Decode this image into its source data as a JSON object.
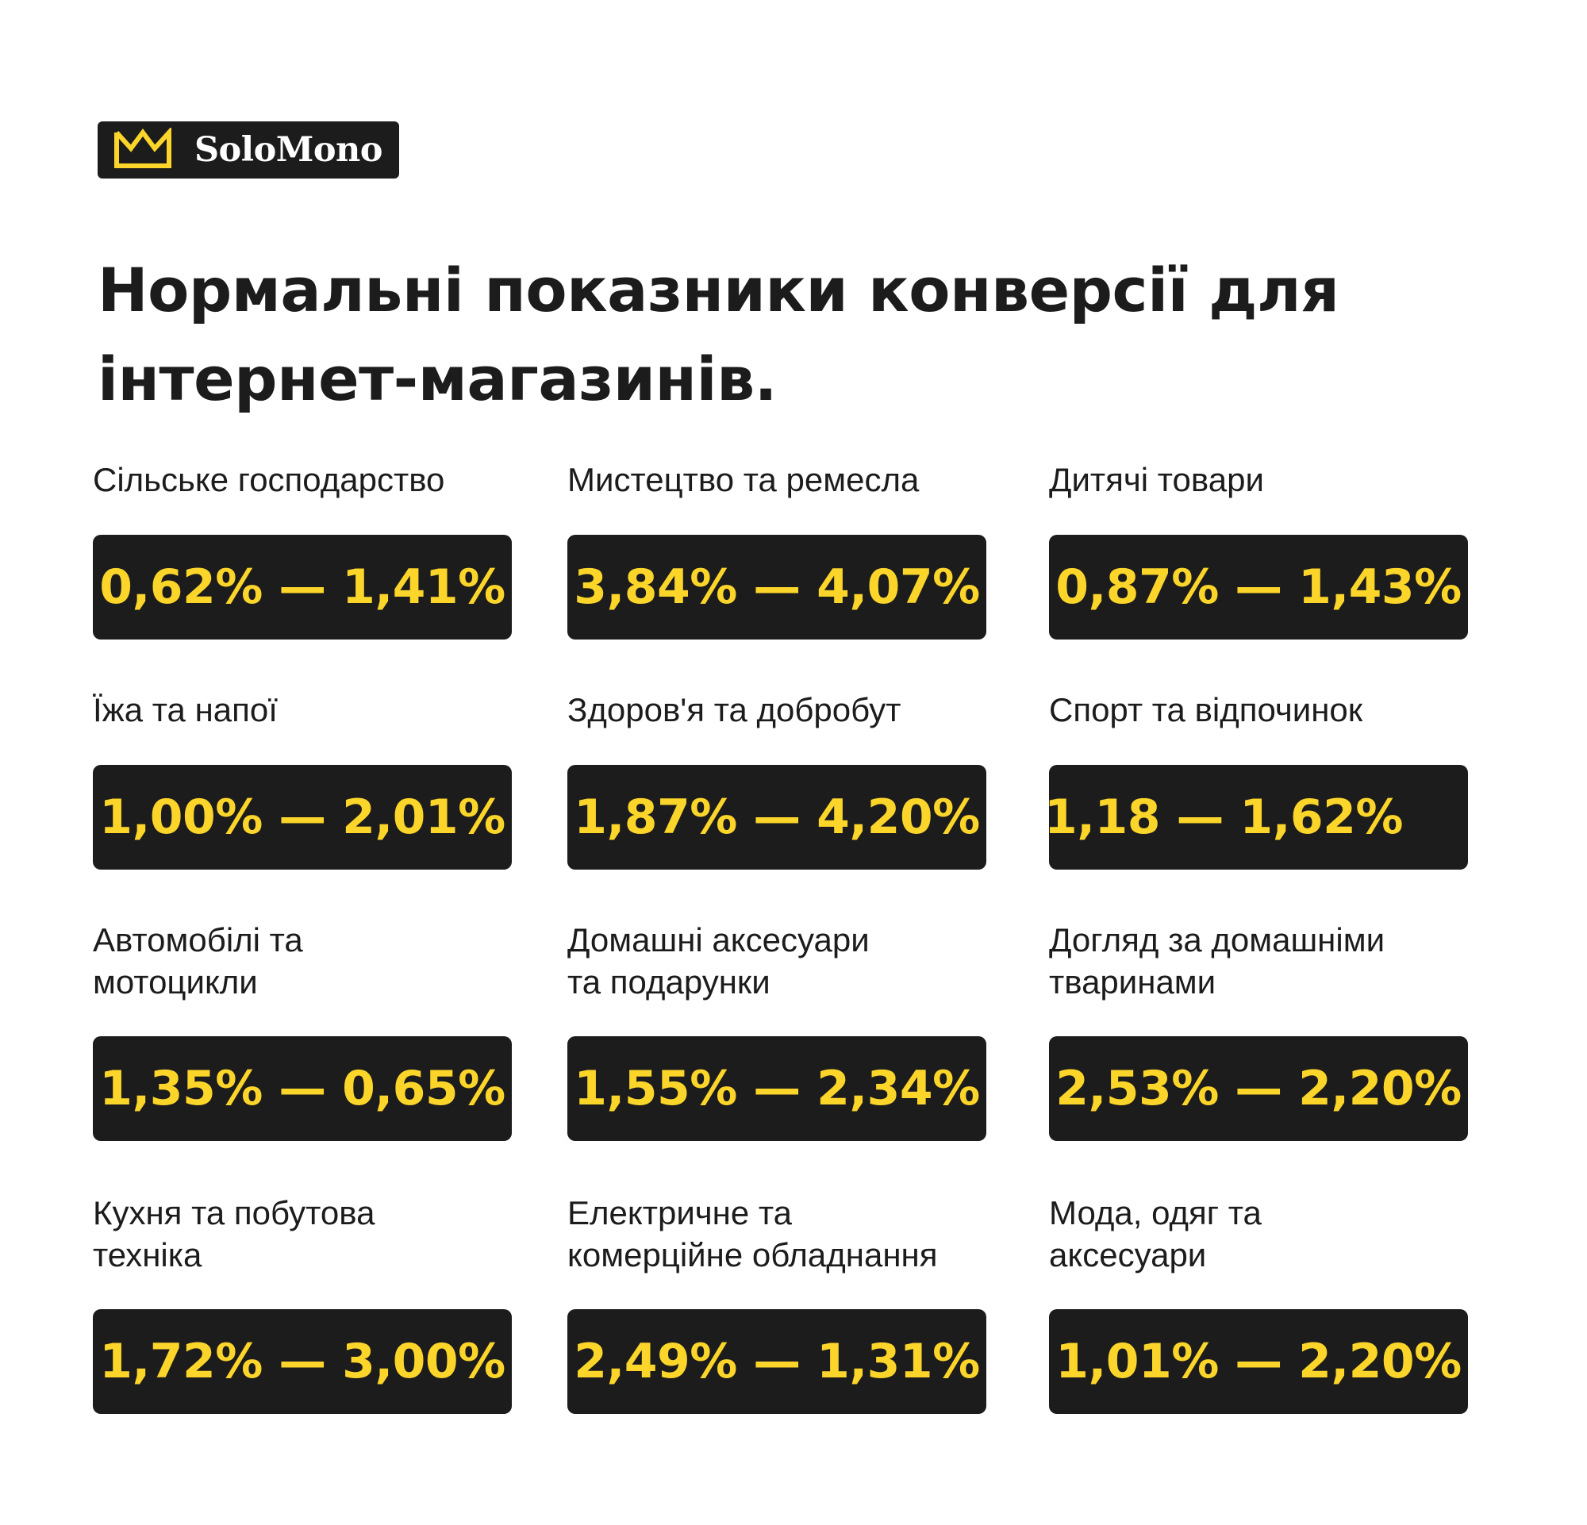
{
  "brand": {
    "name": "SoloMono",
    "logo_icon": "crown-icon",
    "colors": {
      "dark": "#1c1c1c",
      "accent": "#fcd52a",
      "background": "#ffffff"
    }
  },
  "title": {
    "line1": "Нормальні показники конверсії для",
    "line2": "інтернет-магазинів."
  },
  "categories": [
    {
      "label_lines": [
        "Сільське господарство"
      ],
      "range": "0,62% — 1,41%"
    },
    {
      "label_lines": [
        "Мистецтво та ремесла"
      ],
      "range": "3,84% — 4,07%"
    },
    {
      "label_lines": [
        "Дитячі товари"
      ],
      "range": "0,87% — 1,43%"
    },
    {
      "label_lines": [
        "Їжа та напої"
      ],
      "range": "1,00% — 2,01%"
    },
    {
      "label_lines": [
        "Здоров'я та добробут"
      ],
      "range": "1,87% — 4,20%"
    },
    {
      "label_lines": [
        "Спорт та відпочинок"
      ],
      "range": "1,18 — 1,62%"
    },
    {
      "label_lines": [
        "Автомобілі та",
        "мотоцикли"
      ],
      "range": "1,35% — 0,65%"
    },
    {
      "label_lines": [
        "Домашні аксесуари",
        "та подарунки"
      ],
      "range": "1,55% — 2,34%"
    },
    {
      "label_lines": [
        "Догляд за домашніми",
        "тваринами"
      ],
      "range": "2,53% — 2,20%"
    },
    {
      "label_lines": [
        "Кухня та побутова",
        "техніка"
      ],
      "range": "1,72% — 3,00%"
    },
    {
      "label_lines": [
        "Електричне та",
        "комерційне обладнання"
      ],
      "range": "2,49% — 1,31%"
    },
    {
      "label_lines": [
        "Мода, одяг та",
        "аксесуари"
      ],
      "range": "1,01% — 2,20%"
    }
  ]
}
